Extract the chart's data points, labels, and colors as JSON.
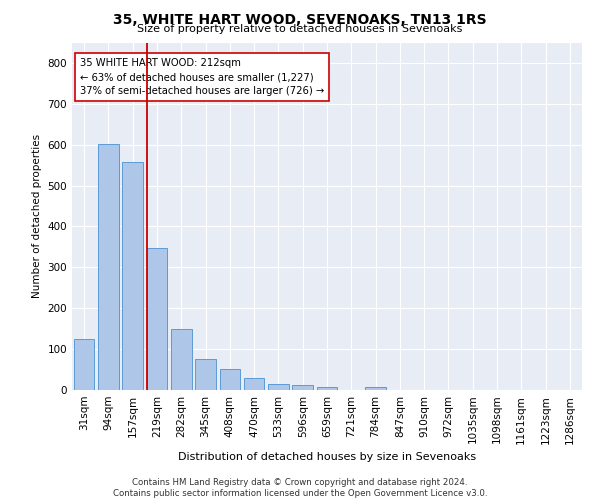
{
  "title": "35, WHITE HART WOOD, SEVENOAKS, TN13 1RS",
  "subtitle": "Size of property relative to detached houses in Sevenoaks",
  "xlabel": "Distribution of detached houses by size in Sevenoaks",
  "ylabel": "Number of detached properties",
  "bar_color": "#aec6e8",
  "bar_edge_color": "#5b9bd5",
  "background_color": "#e8ecf5",
  "grid_color": "#ffffff",
  "annotation_box_color": "#cc0000",
  "annotation_text": "35 WHITE HART WOOD: 212sqm\n← 63% of detached houses are smaller (1,227)\n37% of semi-detached houses are larger (726) →",
  "categories": [
    "31sqm",
    "94sqm",
    "157sqm",
    "219sqm",
    "282sqm",
    "345sqm",
    "408sqm",
    "470sqm",
    "533sqm",
    "596sqm",
    "659sqm",
    "721sqm",
    "784sqm",
    "847sqm",
    "910sqm",
    "972sqm",
    "1035sqm",
    "1098sqm",
    "1161sqm",
    "1223sqm",
    "1286sqm"
  ],
  "values": [
    125,
    602,
    558,
    348,
    150,
    77,
    52,
    30,
    14,
    13,
    8,
    0,
    8,
    0,
    0,
    0,
    0,
    0,
    0,
    0,
    0
  ],
  "ylim": [
    0,
    850
  ],
  "yticks": [
    0,
    100,
    200,
    300,
    400,
    500,
    600,
    700,
    800
  ],
  "footer": "Contains HM Land Registry data © Crown copyright and database right 2024.\nContains public sector information licensed under the Open Government Licence v3.0.",
  "figsize": [
    6.0,
    5.0
  ],
  "dpi": 100
}
